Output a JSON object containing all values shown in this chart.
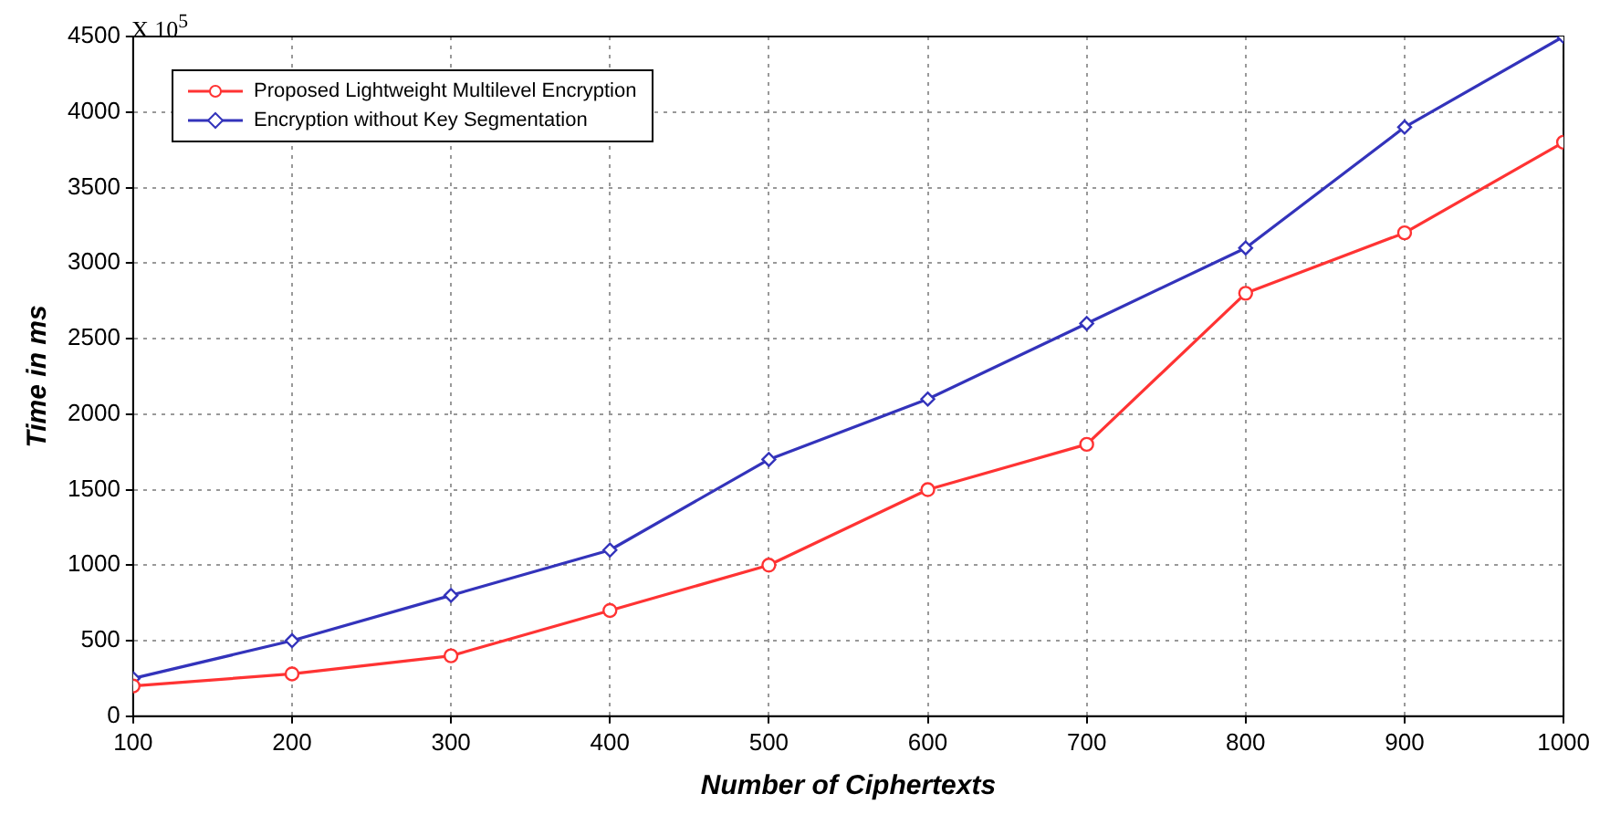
{
  "chart_data": {
    "type": "line",
    "xlabel": "Number of Ciphertexts",
    "ylabel": "Time in ms",
    "annotations": [
      "X 10$^{5}$"
    ],
    "x": [
      100,
      200,
      300,
      400,
      500,
      600,
      700,
      800,
      900,
      1000
    ],
    "series": [
      {
        "name": "Proposed Lightweight Multilevel Encryption",
        "color": "#ff3333",
        "marker": "circle",
        "values": [
          200,
          280,
          400,
          700,
          1000,
          1500,
          1800,
          2800,
          3200,
          3800
        ]
      },
      {
        "name": "Encryption without Key Segmentation",
        "color": "#3333bb",
        "marker": "diamond",
        "values": [
          250,
          500,
          800,
          1100,
          1700,
          2100,
          2600,
          3100,
          3900,
          4500
        ]
      }
    ],
    "xlim": [
      100,
      1000
    ],
    "xticks": [
      100,
      200,
      300,
      400,
      500,
      600,
      700,
      800,
      900,
      1000
    ],
    "ylim": [
      0,
      4500
    ],
    "yticks": [
      0,
      500,
      1000,
      1500,
      2000,
      2500,
      3000,
      3500,
      4000,
      4500
    ],
    "grid": true,
    "legend": "top left",
    "line_style": "solid"
  }
}
